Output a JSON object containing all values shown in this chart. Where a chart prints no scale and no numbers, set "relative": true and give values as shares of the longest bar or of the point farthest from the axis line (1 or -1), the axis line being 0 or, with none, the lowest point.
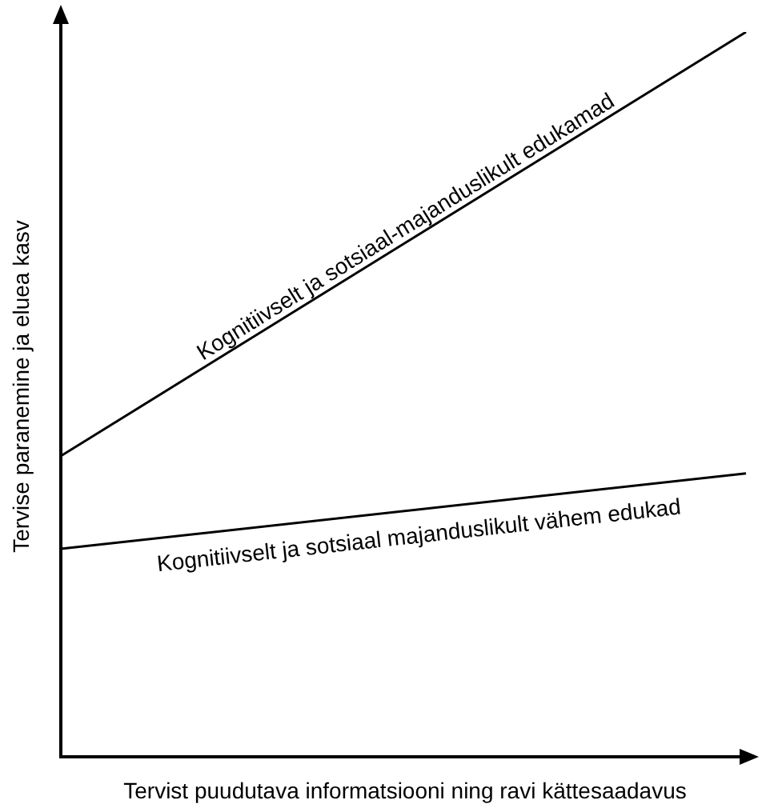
{
  "chart_data": {
    "type": "line",
    "relative": true,
    "xlabel": "Tervist puudutava informatsiooni ning ravi kättesaadavus",
    "ylabel": "Tervise paranemine ja eluea kasv",
    "categories": [
      null,
      null
    ],
    "marker": "none",
    "series": [
      {
        "name": "Kognitiivselt ja sotsiaal-majanduslikult edukamad",
        "color": "#000000",
        "values": [
          0.415,
          1
        ]
      },
      {
        "name": "Kognitiivselt ja sotsiaal majanduslikult vähem edukad",
        "color": "#000000",
        "values": [
          0.287,
          0.391
        ]
      }
    ]
  }
}
